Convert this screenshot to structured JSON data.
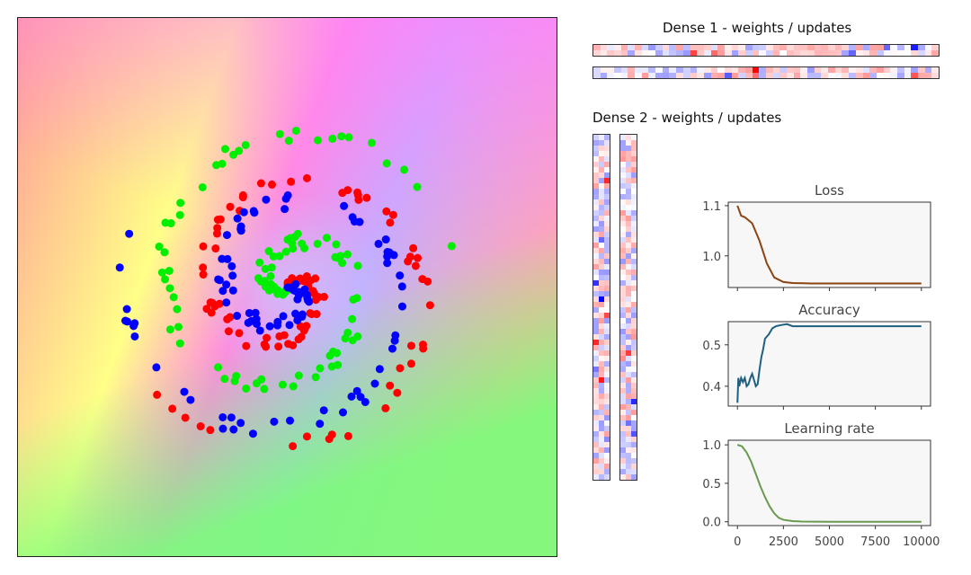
{
  "chart_data": [
    {
      "type": "scatter",
      "description_key": "decision-boundary",
      "classes": [
        {
          "color": "#ff0000"
        },
        {
          "color": "#00ee00"
        },
        {
          "color": "#0000ff"
        }
      ],
      "points_per_class": 100,
      "xlim": [
        -1,
        1
      ],
      "ylim": [
        -1,
        1
      ]
    },
    {
      "type": "heatmap",
      "title": "Dense 1 - weights / updates",
      "panels": 2,
      "rows": 2,
      "cols": 50,
      "colormap": "bwr"
    },
    {
      "type": "heatmap",
      "title": "Dense 2 - weights / updates",
      "panels": 2,
      "rows": 64,
      "cols": 3,
      "colormap": "bwr"
    },
    {
      "type": "line",
      "title": "Loss",
      "color": "#8b4513",
      "x": [
        0,
        200,
        400,
        800,
        1200,
        1600,
        2000,
        2500,
        3000,
        4000,
        6000,
        8000,
        10000
      ],
      "y": [
        1.1,
        1.08,
        1.077,
        1.065,
        1.03,
        0.985,
        0.957,
        0.948,
        0.946,
        0.945,
        0.945,
        0.945,
        0.945
      ],
      "ylim": [
        0.937,
        1.107
      ],
      "xlim": [
        -500,
        10500
      ],
      "yticks": [
        "1.0",
        "1.1"
      ],
      "yticks_values": [
        1.0,
        1.1
      ]
    },
    {
      "type": "line",
      "title": "Accuracy",
      "color": "#1f6080",
      "x": [
        0,
        50,
        100,
        200,
        300,
        400,
        500,
        600,
        700,
        800,
        900,
        1000,
        1100,
        1200,
        1300,
        1400,
        1500,
        1700,
        1900,
        2100,
        2400,
        2700,
        3000,
        5000,
        10000
      ],
      "y": [
        0.36,
        0.42,
        0.4,
        0.42,
        0.41,
        0.42,
        0.4,
        0.405,
        0.42,
        0.43,
        0.415,
        0.4,
        0.405,
        0.44,
        0.47,
        0.49,
        0.515,
        0.525,
        0.54,
        0.545,
        0.548,
        0.55,
        0.545,
        0.545,
        0.545
      ],
      "ylim": [
        0.352,
        0.556
      ],
      "xlim": [
        -500,
        10500
      ],
      "yticks": [
        "0.4",
        "0.5"
      ],
      "yticks_values": [
        0.4,
        0.5
      ]
    },
    {
      "type": "line",
      "title": "Learning rate",
      "color": "#6a9a50",
      "x": [
        0,
        250,
        500,
        750,
        1000,
        1250,
        1500,
        1750,
        2000,
        2250,
        2500,
        3000,
        3500,
        5000,
        10000
      ],
      "y": [
        1.0,
        0.98,
        0.9,
        0.78,
        0.62,
        0.46,
        0.32,
        0.2,
        0.11,
        0.05,
        0.025,
        0.008,
        0.003,
        0.0,
        0.0
      ],
      "ylim": [
        -0.05,
        1.06
      ],
      "xlim": [
        -500,
        10500
      ],
      "yticks": [
        "0.0",
        "0.5",
        "1.0"
      ],
      "yticks_values": [
        0,
        0.5,
        1.0
      ],
      "xticks": [
        "0",
        "2500",
        "5000",
        "7500",
        "10000"
      ],
      "xticks_values": [
        0,
        2500,
        5000,
        7500,
        10000
      ]
    }
  ],
  "dense1_title": "Dense 1 - weights / updates",
  "dense2_title": "Dense 2 - weights / updates",
  "loss_title": "Loss",
  "acc_title": "Accuracy",
  "lr_title": "Learning rate"
}
